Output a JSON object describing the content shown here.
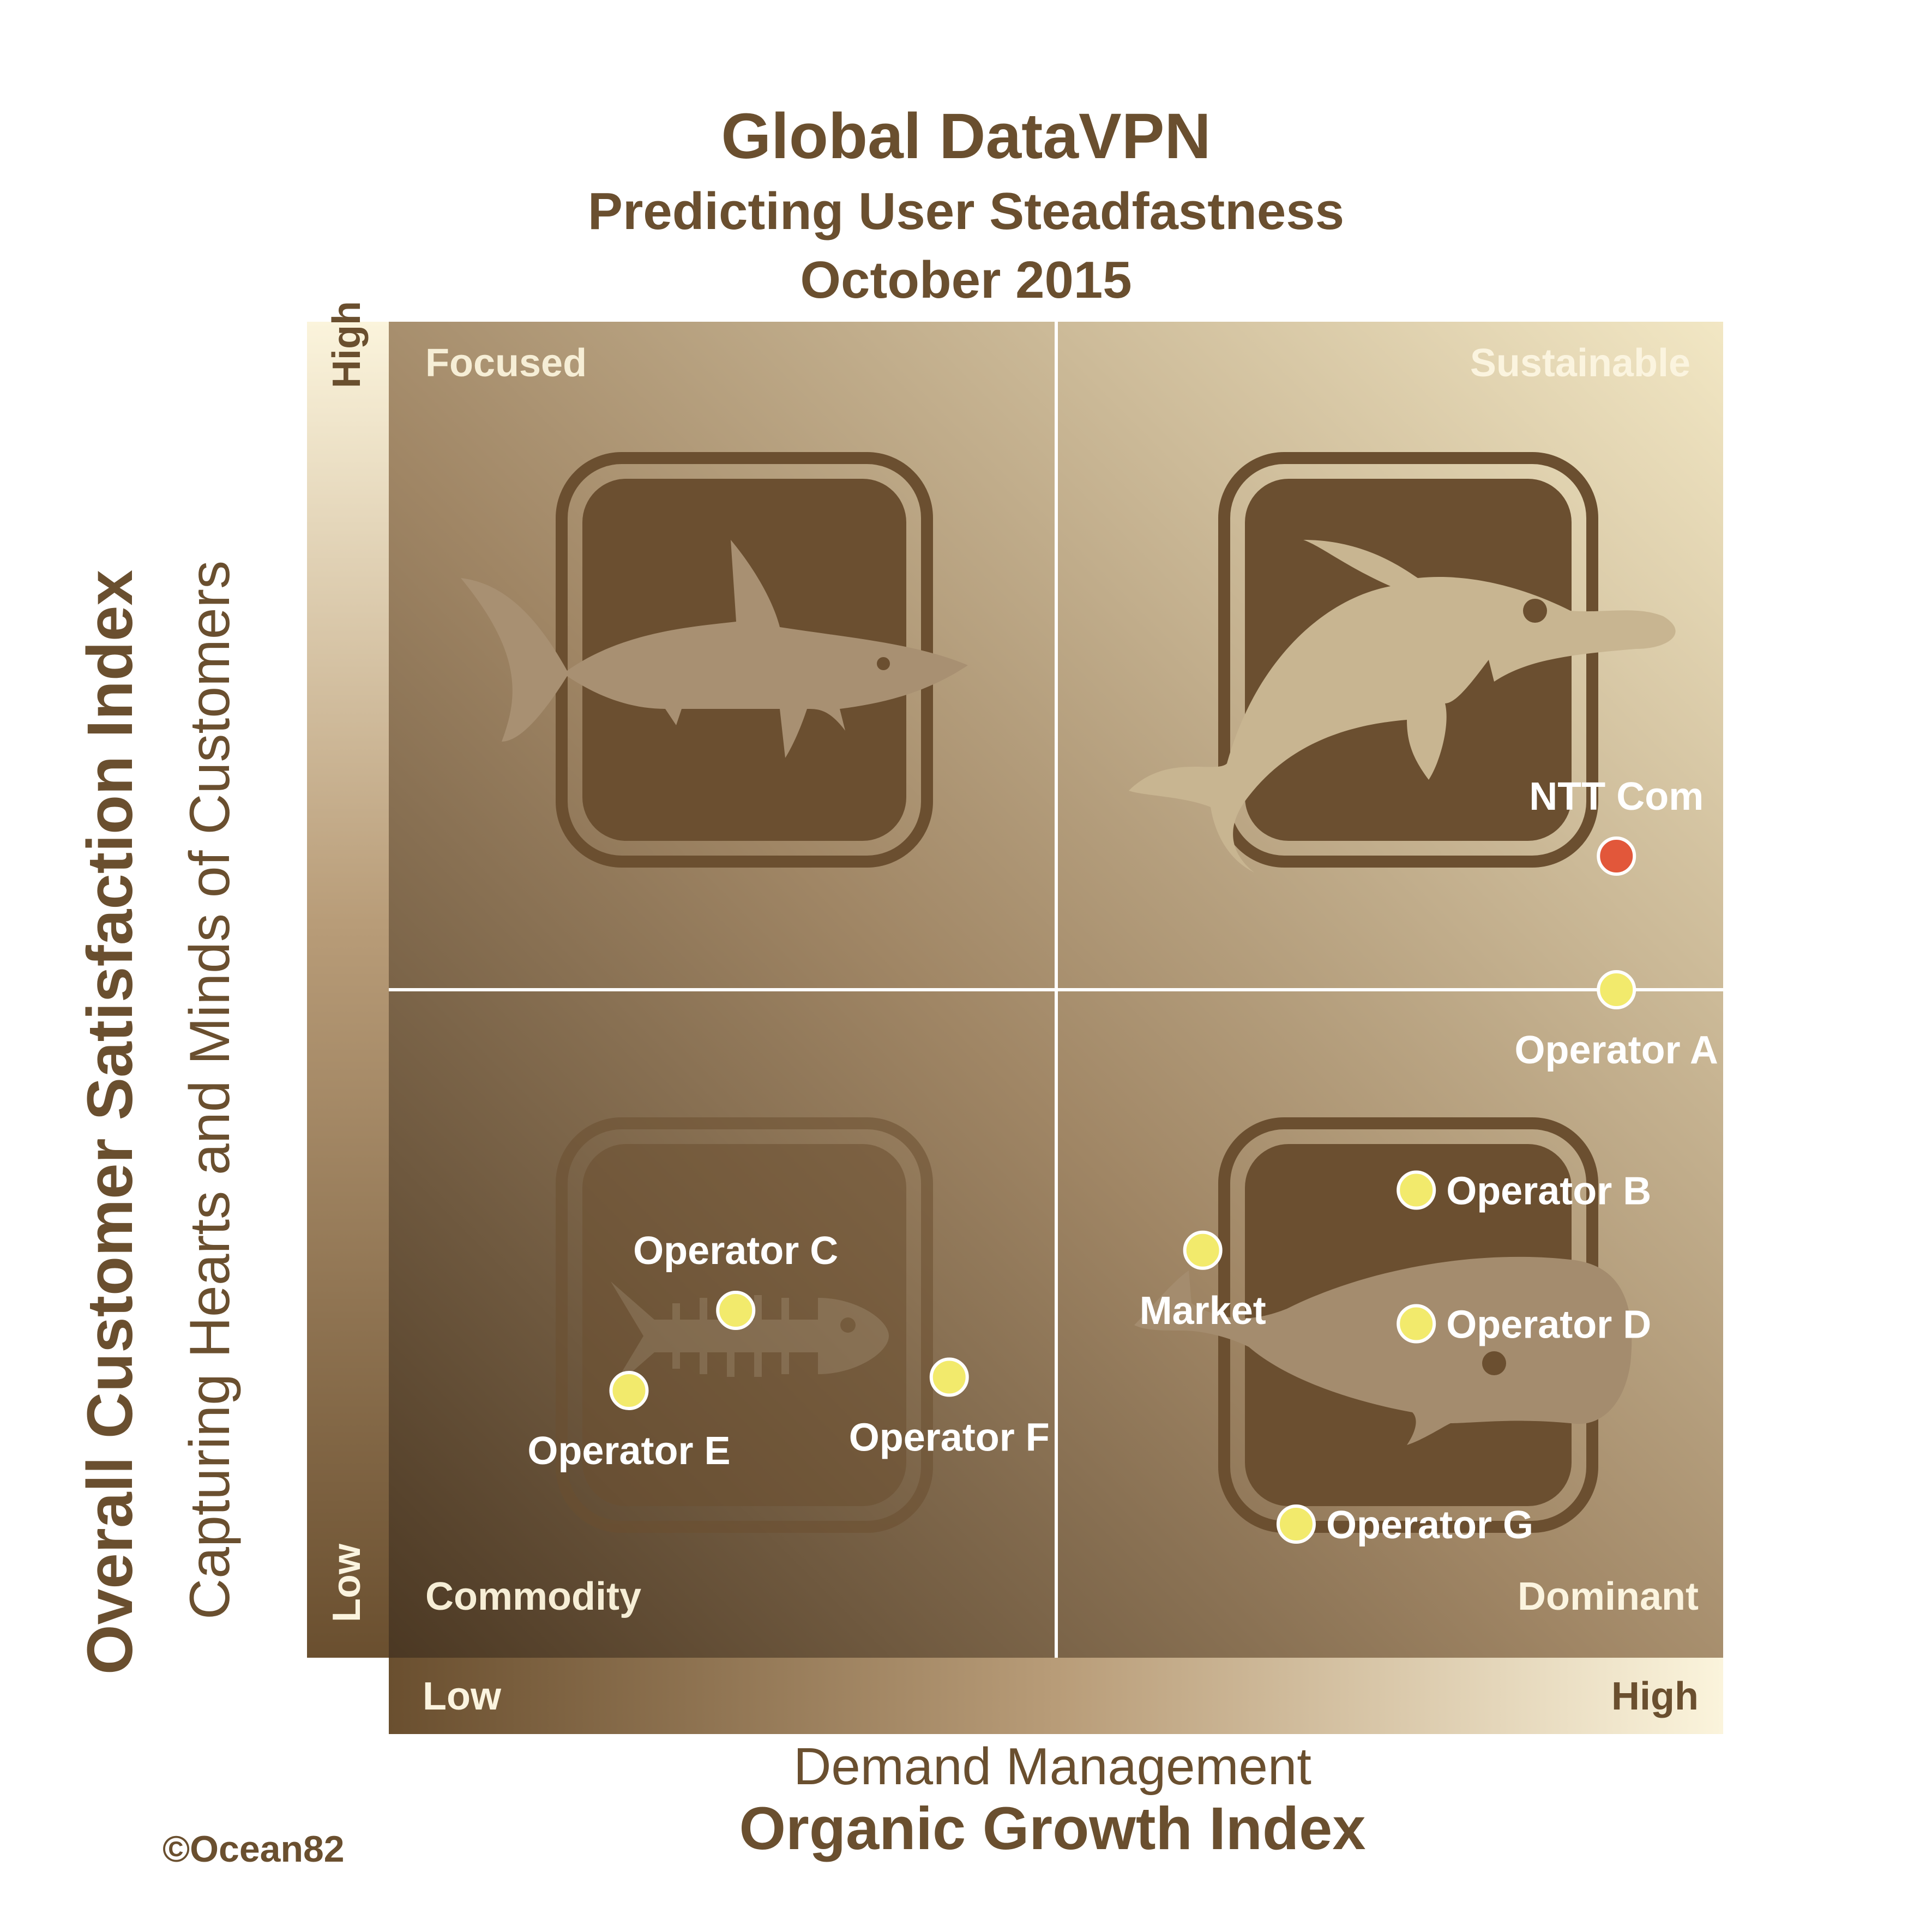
{
  "header": {
    "title": "Global DataVPN",
    "subtitle": "Predicting User Steadfastness",
    "date": "October 2015"
  },
  "axes": {
    "y_title": "Overall Customer  Satisfaction  Index",
    "y_subtitle": "Capturing Hearts and Minds of Customers",
    "y_low": "Low",
    "y_high": "High",
    "x_subtitle": "Demand Management",
    "x_title": "Organic Growth Index",
    "x_low": "Low",
    "x_high": "High"
  },
  "quadrants": {
    "top_left": "Focused",
    "top_right": "Sustainable",
    "bottom_left": "Commodity",
    "bottom_right": "Dominant"
  },
  "footer": {
    "copyright": "©Ocean82"
  },
  "colors": {
    "text_brown": "#6a4f2f",
    "icon_brown": "#6b4f30",
    "point_default": "#f2ea6c",
    "point_highlight": "#e2573a",
    "grid_line": "#ffffff"
  },
  "icons": [
    "shark-icon",
    "dolphin-icon",
    "fish-skeleton-icon",
    "whale-icon"
  ],
  "chart_data": {
    "type": "scatter",
    "xlim": [
      0,
      100
    ],
    "ylim": [
      0,
      100
    ],
    "quadrant_split": {
      "x": 50,
      "y": 50
    },
    "points": [
      {
        "label": "NTT Com",
        "x": 92,
        "y": 60,
        "highlight": true,
        "label_pos": "above"
      },
      {
        "label": "Operator A",
        "x": 92,
        "y": 50,
        "highlight": false,
        "label_pos": "below"
      },
      {
        "label": "Operator B",
        "x": 77,
        "y": 35,
        "highlight": false,
        "label_pos": "right"
      },
      {
        "label": "Operator D",
        "x": 77,
        "y": 25,
        "highlight": false,
        "label_pos": "right"
      },
      {
        "label": "Market",
        "x": 61,
        "y": 30.5,
        "highlight": false,
        "label_pos": "below"
      },
      {
        "label": "Operator G",
        "x": 68,
        "y": 10,
        "highlight": false,
        "label_pos": "right"
      },
      {
        "label": "Operator C",
        "x": 26,
        "y": 26,
        "highlight": false,
        "label_pos": "above"
      },
      {
        "label": "Operator E",
        "x": 18,
        "y": 20,
        "highlight": false,
        "label_pos": "below"
      },
      {
        "label": "Operator F",
        "x": 42,
        "y": 21,
        "highlight": false,
        "label_pos": "below"
      }
    ]
  }
}
